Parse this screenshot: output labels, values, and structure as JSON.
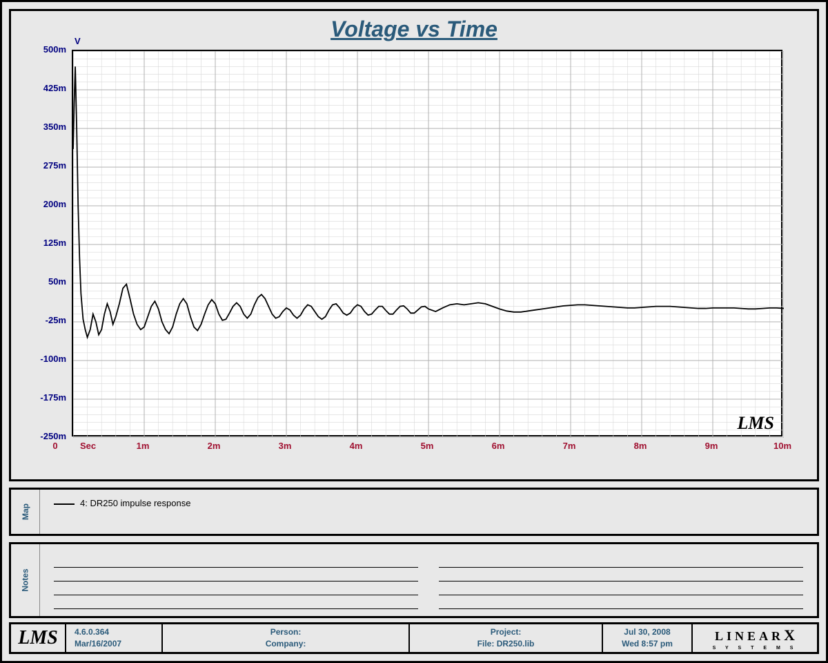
{
  "chart": {
    "title": "Voltage vs Time",
    "title_color": "#2a5a7a",
    "y_unit": "V",
    "x_unit": "Sec",
    "unit_color": "#000080",
    "tick_color_y": "#000080",
    "tick_color_x": "#a01030",
    "background_color": "#ffffff",
    "frame_bg": "#e8e8e8",
    "major_grid_color": "#b0b0b0",
    "minor_grid_color": "#d8d8d8",
    "line_color": "#000000",
    "line_width": 1.8,
    "y_axis": {
      "min": -250,
      "max": 500,
      "major_step": 75,
      "labels": [
        "-250m",
        "-175m",
        "-100m",
        "-25m",
        "50m",
        "125m",
        "200m",
        "275m",
        "350m",
        "425m",
        "500m"
      ]
    },
    "x_axis": {
      "min": 0,
      "max": 10,
      "major_step": 1,
      "labels": [
        "0",
        "1m",
        "2m",
        "3m",
        "4m",
        "5m",
        "6m",
        "7m",
        "8m",
        "9m",
        "10m"
      ]
    },
    "watermark": "LMS",
    "series": {
      "name": "4: DR250 impulse response",
      "data": [
        [
          0.0,
          310
        ],
        [
          0.015,
          400
        ],
        [
          0.03,
          470
        ],
        [
          0.05,
          350
        ],
        [
          0.07,
          200
        ],
        [
          0.09,
          100
        ],
        [
          0.11,
          30
        ],
        [
          0.14,
          -20
        ],
        [
          0.17,
          -40
        ],
        [
          0.2,
          -55
        ],
        [
          0.24,
          -40
        ],
        [
          0.28,
          -10
        ],
        [
          0.32,
          -25
        ],
        [
          0.36,
          -50
        ],
        [
          0.4,
          -40
        ],
        [
          0.44,
          -10
        ],
        [
          0.48,
          10
        ],
        [
          0.52,
          -5
        ],
        [
          0.56,
          -30
        ],
        [
          0.6,
          -15
        ],
        [
          0.65,
          10
        ],
        [
          0.7,
          40
        ],
        [
          0.75,
          48
        ],
        [
          0.8,
          20
        ],
        [
          0.85,
          -10
        ],
        [
          0.9,
          -30
        ],
        [
          0.95,
          -40
        ],
        [
          1.0,
          -35
        ],
        [
          1.05,
          -15
        ],
        [
          1.1,
          5
        ],
        [
          1.15,
          15
        ],
        [
          1.2,
          0
        ],
        [
          1.25,
          -25
        ],
        [
          1.3,
          -40
        ],
        [
          1.35,
          -48
        ],
        [
          1.4,
          -35
        ],
        [
          1.45,
          -10
        ],
        [
          1.5,
          10
        ],
        [
          1.55,
          20
        ],
        [
          1.6,
          10
        ],
        [
          1.65,
          -15
        ],
        [
          1.7,
          -35
        ],
        [
          1.75,
          -42
        ],
        [
          1.8,
          -30
        ],
        [
          1.85,
          -10
        ],
        [
          1.9,
          8
        ],
        [
          1.95,
          18
        ],
        [
          2.0,
          10
        ],
        [
          2.05,
          -10
        ],
        [
          2.1,
          -22
        ],
        [
          2.15,
          -20
        ],
        [
          2.2,
          -8
        ],
        [
          2.25,
          5
        ],
        [
          2.3,
          12
        ],
        [
          2.35,
          5
        ],
        [
          2.4,
          -10
        ],
        [
          2.45,
          -18
        ],
        [
          2.5,
          -10
        ],
        [
          2.55,
          8
        ],
        [
          2.6,
          22
        ],
        [
          2.65,
          28
        ],
        [
          2.7,
          20
        ],
        [
          2.75,
          5
        ],
        [
          2.8,
          -10
        ],
        [
          2.85,
          -18
        ],
        [
          2.9,
          -15
        ],
        [
          2.95,
          -5
        ],
        [
          3.0,
          2
        ],
        [
          3.05,
          -2
        ],
        [
          3.1,
          -12
        ],
        [
          3.15,
          -18
        ],
        [
          3.2,
          -12
        ],
        [
          3.25,
          0
        ],
        [
          3.3,
          8
        ],
        [
          3.35,
          5
        ],
        [
          3.4,
          -5
        ],
        [
          3.45,
          -15
        ],
        [
          3.5,
          -20
        ],
        [
          3.55,
          -15
        ],
        [
          3.6,
          -2
        ],
        [
          3.65,
          8
        ],
        [
          3.7,
          10
        ],
        [
          3.75,
          2
        ],
        [
          3.8,
          -8
        ],
        [
          3.85,
          -12
        ],
        [
          3.9,
          -8
        ],
        [
          3.95,
          2
        ],
        [
          4.0,
          8
        ],
        [
          4.05,
          5
        ],
        [
          4.1,
          -5
        ],
        [
          4.15,
          -12
        ],
        [
          4.2,
          -10
        ],
        [
          4.25,
          -2
        ],
        [
          4.3,
          5
        ],
        [
          4.35,
          5
        ],
        [
          4.4,
          -3
        ],
        [
          4.45,
          -10
        ],
        [
          4.5,
          -10
        ],
        [
          4.55,
          -2
        ],
        [
          4.6,
          5
        ],
        [
          4.65,
          6
        ],
        [
          4.7,
          0
        ],
        [
          4.75,
          -8
        ],
        [
          4.8,
          -8
        ],
        [
          4.85,
          -2
        ],
        [
          4.9,
          4
        ],
        [
          4.95,
          5
        ],
        [
          5.0,
          0
        ],
        [
          5.1,
          -5
        ],
        [
          5.2,
          2
        ],
        [
          5.3,
          8
        ],
        [
          5.4,
          10
        ],
        [
          5.5,
          8
        ],
        [
          5.6,
          10
        ],
        [
          5.7,
          12
        ],
        [
          5.8,
          10
        ],
        [
          5.9,
          5
        ],
        [
          6.0,
          0
        ],
        [
          6.1,
          -4
        ],
        [
          6.2,
          -6
        ],
        [
          6.3,
          -6
        ],
        [
          6.4,
          -4
        ],
        [
          6.5,
          -2
        ],
        [
          6.6,
          0
        ],
        [
          6.7,
          2
        ],
        [
          6.8,
          4
        ],
        [
          6.9,
          6
        ],
        [
          7.0,
          7
        ],
        [
          7.1,
          8
        ],
        [
          7.2,
          8
        ],
        [
          7.3,
          7
        ],
        [
          7.4,
          6
        ],
        [
          7.5,
          5
        ],
        [
          7.6,
          4
        ],
        [
          7.7,
          3
        ],
        [
          7.8,
          2
        ],
        [
          7.9,
          2
        ],
        [
          8.0,
          3
        ],
        [
          8.1,
          4
        ],
        [
          8.2,
          5
        ],
        [
          8.3,
          5
        ],
        [
          8.4,
          5
        ],
        [
          8.5,
          4
        ],
        [
          8.6,
          3
        ],
        [
          8.7,
          2
        ],
        [
          8.8,
          1
        ],
        [
          8.9,
          1
        ],
        [
          9.0,
          2
        ],
        [
          9.1,
          2
        ],
        [
          9.2,
          2
        ],
        [
          9.3,
          2
        ],
        [
          9.4,
          1
        ],
        [
          9.5,
          0
        ],
        [
          9.6,
          0
        ],
        [
          9.7,
          1
        ],
        [
          9.8,
          2
        ],
        [
          9.9,
          2
        ],
        [
          10.0,
          1
        ]
      ]
    }
  },
  "legend": {
    "tab_label": "Map",
    "tab_color": "#2a5a7a",
    "item": "4: DR250 impulse response"
  },
  "notes": {
    "tab_label": "Notes",
    "tab_color": "#2a5a7a",
    "lines_per_column": 4,
    "columns": 2
  },
  "footer": {
    "lms": "LMS",
    "version": "4.6.0.364",
    "build_date": "Mar/16/2007",
    "person_label": "Person:",
    "person": "",
    "company_label": "Company:",
    "company": "",
    "project_label": "Project:",
    "project": "",
    "file_label": "File:",
    "file": "DR250.lib",
    "date": "Jul 30, 2008",
    "time": "Wed  8:57 pm",
    "logo": "LINEARX",
    "logo_sub": "S Y S T E M S",
    "text_color": "#2a5a7a"
  }
}
